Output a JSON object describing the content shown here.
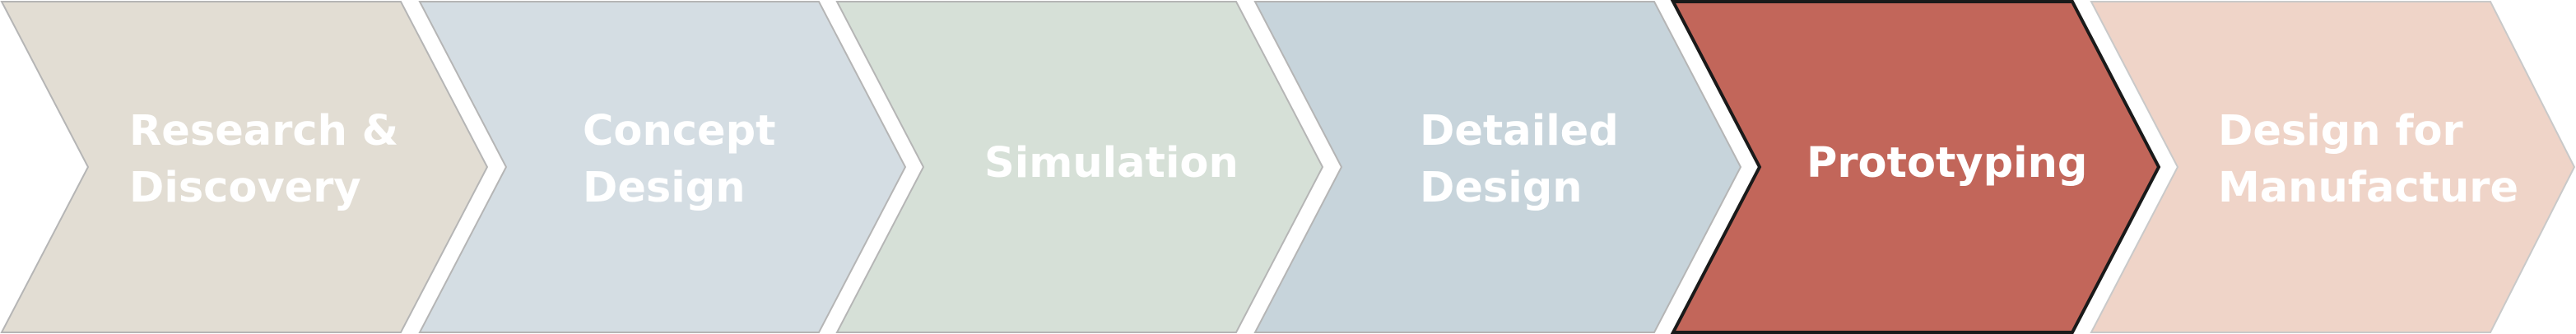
{
  "process": {
    "stages": [
      {
        "lines": [
          "Research &",
          "Discovery"
        ],
        "color": "#e2ddd3",
        "active": false
      },
      {
        "lines": [
          "Concept",
          "Design"
        ],
        "color": "#d4dde3",
        "active": false
      },
      {
        "lines": [
          "Simulation"
        ],
        "color": "#d6e0d7",
        "active": false
      },
      {
        "lines": [
          "Detailed",
          "Design"
        ],
        "color": "#c7d4db",
        "active": false
      },
      {
        "lines": [
          "Prototyping"
        ],
        "color": "#c2665a",
        "active": true
      },
      {
        "lines": [
          "Design for",
          "Manufacture"
        ],
        "color": "#efd4c8",
        "active": false
      }
    ]
  }
}
